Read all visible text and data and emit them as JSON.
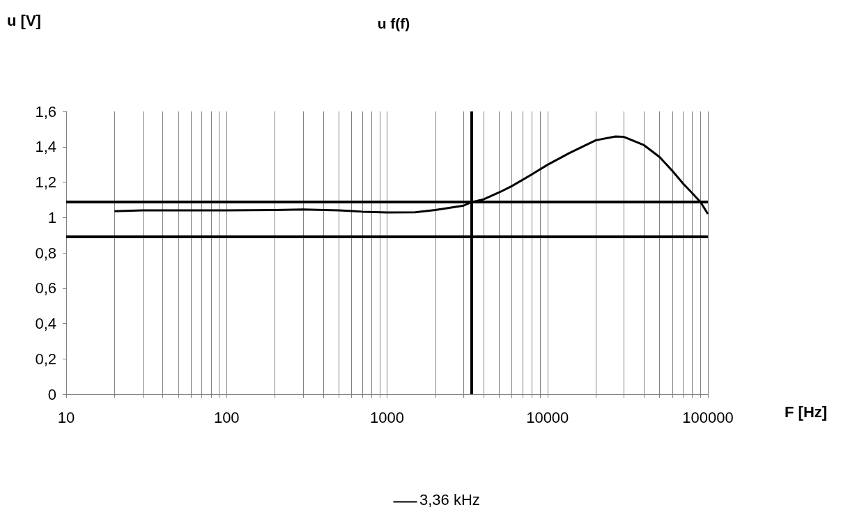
{
  "chart_data": {
    "type": "line",
    "title": "u f(f)",
    "xlabel": "F [Hz]",
    "ylabel": "u [V]",
    "x": [
      20,
      30,
      50,
      100,
      200,
      300,
      500,
      700,
      1000,
      1500,
      2000,
      3000,
      3360,
      4000,
      5000,
      6000,
      8000,
      10000,
      13650,
      20000,
      26500,
      30000,
      40000,
      50000,
      60000,
      70000,
      80000,
      90000,
      100000
    ],
    "series": [
      {
        "color": "#000000",
        "values": [
          1.035,
          1.04,
          1.04,
          1.04,
          1.042,
          1.045,
          1.04,
          1.033,
          1.029,
          1.03,
          1.042,
          1.067,
          1.087,
          1.103,
          1.142,
          1.178,
          1.244,
          1.298,
          1.364,
          1.437,
          1.458,
          1.456,
          1.409,
          1.342,
          1.264,
          1.192,
          1.137,
          1.087,
          1.02
        ]
      }
    ],
    "xlim": [
      10,
      100000
    ],
    "xticks": [
      10,
      {
        "value": 20,
        "label": null
      },
      {
        "value": 30,
        "label": null
      },
      {
        "value": 40,
        "label": null
      },
      {
        "value": 50,
        "label": null
      },
      {
        "value": 60,
        "label": null
      },
      {
        "value": 70,
        "label": null
      },
      {
        "value": 80,
        "label": null
      },
      {
        "value": 90,
        "label": null
      },
      100,
      {
        "value": 200,
        "label": null
      },
      {
        "value": 300,
        "label": null
      },
      {
        "value": 400,
        "label": null
      },
      {
        "value": 500,
        "label": null
      },
      {
        "value": 600,
        "label": null
      },
      {
        "value": 700,
        "label": null
      },
      {
        "value": 800,
        "label": null
      },
      {
        "value": 900,
        "label": null
      },
      1000,
      {
        "value": 2000,
        "label": null
      },
      {
        "value": 3000,
        "label": null
      },
      {
        "value": 4000,
        "label": null
      },
      {
        "value": 5000,
        "label": null
      },
      {
        "value": 6000,
        "label": null
      },
      {
        "value": 7000,
        "label": null
      },
      {
        "value": 8000,
        "label": null
      },
      {
        "value": 9000,
        "label": null
      },
      10000,
      {
        "value": 20000,
        "label": null
      },
      {
        "value": 30000,
        "label": null
      },
      {
        "value": 40000,
        "label": null
      },
      {
        "value": 50000,
        "label": null
      },
      {
        "value": 60000,
        "label": null
      },
      {
        "value": 70000,
        "label": null
      },
      {
        "value": 80000,
        "label": null
      },
      {
        "value": 90000,
        "label": null
      },
      100000
    ],
    "log": "x",
    "ylim": [
      0,
      1.6
    ],
    "yticks": [
      0,
      {
        "value": 0.2,
        "label": "0,2"
      },
      {
        "value": 0.4,
        "label": "0,4"
      },
      {
        "value": 0.6,
        "label": "0,6"
      },
      {
        "value": 0.8,
        "label": "0,8"
      },
      1,
      {
        "value": 1.2,
        "label": "1,2"
      },
      {
        "value": 1.4,
        "label": "1,4"
      },
      {
        "value": 1.6,
        "label": "1,6"
      }
    ],
    "grid": "x",
    "marker": "none",
    "line_style": "solid",
    "ref_lines": [
      {
        "axis": "y",
        "value": 1.09,
        "color": "#000000"
      },
      {
        "axis": "y",
        "value": 0.89,
        "color": "#000000"
      },
      {
        "axis": "x",
        "value": 3360,
        "label": "3,36 kHz",
        "color": "#000000"
      }
    ]
  }
}
